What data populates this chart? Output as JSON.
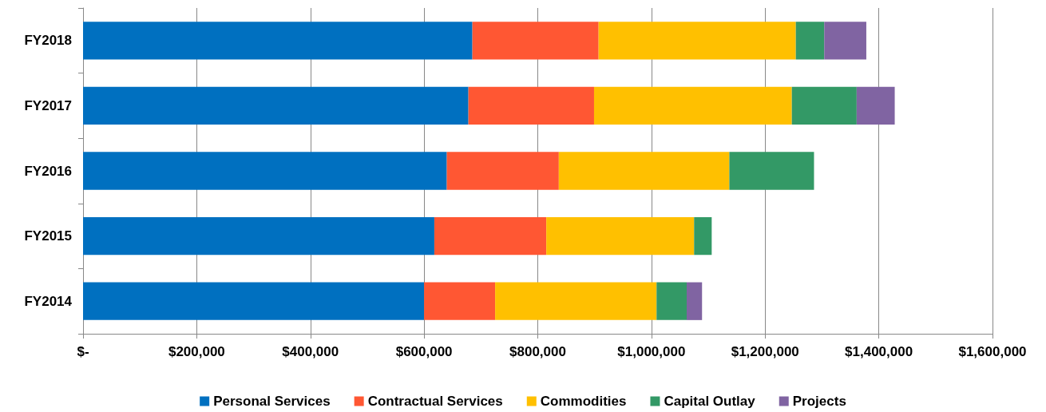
{
  "chart_data": {
    "type": "bar",
    "orientation": "horizontal",
    "stacked": true,
    "categories": [
      "FY2018",
      "FY2017",
      "FY2016",
      "FY2015",
      "FY2014"
    ],
    "series": [
      {
        "name": "Personal Services",
        "color": "#0070c0",
        "values": [
          685000,
          678000,
          640000,
          618000,
          600000
        ]
      },
      {
        "name": "Contractual Services",
        "color": "#ff5733",
        "values": [
          222000,
          221000,
          197000,
          197000,
          125000
        ]
      },
      {
        "name": "Commodities",
        "color": "#ffc000",
        "values": [
          347000,
          348000,
          300000,
          260000,
          284000
        ]
      },
      {
        "name": "Capital Outlay",
        "color": "#339966",
        "values": [
          50000,
          114000,
          149000,
          31000,
          53000
        ]
      },
      {
        "name": "Projects",
        "color": "#8064a2",
        "values": [
          74000,
          67000,
          null,
          null,
          27000
        ]
      }
    ],
    "xlim": [
      0,
      1600000
    ],
    "xticks": [
      {
        "value": 0,
        "label": "$-"
      },
      {
        "value": 200000,
        "label": "$200,000"
      },
      {
        "value": 400000,
        "label": "$400,000"
      },
      {
        "value": 600000,
        "label": "$600,000"
      },
      {
        "value": 800000,
        "label": "$800,000"
      },
      {
        "value": 1000000,
        "label": "$1,000,000"
      },
      {
        "value": 1200000,
        "label": "$1,200,000"
      },
      {
        "value": 1400000,
        "label": "$1,400,000"
      },
      {
        "value": 1600000,
        "label": "$1,600,000"
      }
    ],
    "grid": "x",
    "legend": "bottom"
  }
}
